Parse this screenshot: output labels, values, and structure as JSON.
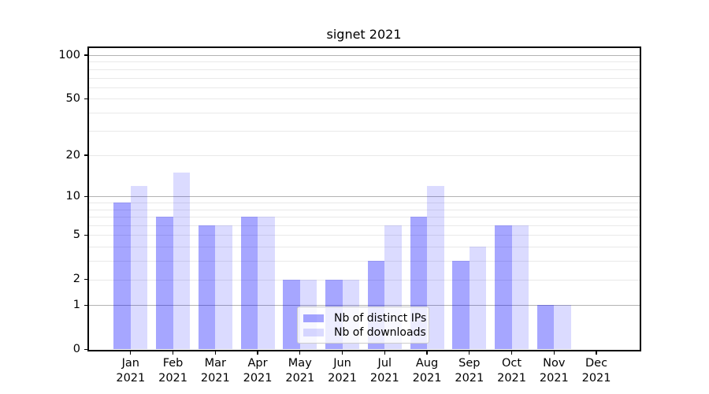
{
  "title": "signet 2021",
  "chart_data": {
    "type": "bar",
    "title": "signet 2021",
    "categories": [
      "Jan 2021",
      "Feb 2021",
      "Mar 2021",
      "Apr 2021",
      "May 2021",
      "Jun 2021",
      "Jul 2021",
      "Aug 2021",
      "Sep 2021",
      "Oct 2021",
      "Nov 2021",
      "Dec 2021"
    ],
    "series": [
      {
        "name": "Nb of distinct IPs",
        "color": "rgba(0,0,255,0.35)",
        "values": [
          9,
          7,
          6,
          7,
          2,
          2,
          3,
          7,
          3,
          6,
          1,
          0
        ]
      },
      {
        "name": "Nb of downloads",
        "color": "rgba(0,0,255,0.14)",
        "values": [
          12,
          15,
          6,
          7,
          2,
          2,
          6,
          12,
          4,
          6,
          1,
          0
        ]
      }
    ],
    "xlabel": "",
    "ylabel": "",
    "yscale": "log1p",
    "ylim": [
      0,
      113
    ],
    "yticks": [
      0,
      1,
      2,
      5,
      10,
      20,
      50,
      100
    ],
    "ytick_labels": [
      "0",
      "1",
      "2",
      "5",
      "10",
      "20",
      "50",
      "100"
    ],
    "major_gridlines": [
      1,
      10,
      100
    ],
    "minor_gridlines": [
      2,
      3,
      4,
      5,
      6,
      7,
      8,
      9,
      20,
      30,
      40,
      50,
      60,
      70,
      80,
      90
    ],
    "grid": true,
    "legend_position": "lower center"
  },
  "colors": {
    "bar_distinct_ips_blended": "#a6a6ff",
    "bar_downloads_blended": "#dcdcff",
    "major_grid": "#b3b3b3",
    "minor_grid": "#e9e9e9",
    "spine": "#000000",
    "background": "#ffffff",
    "legend_border": "#cccccc"
  }
}
